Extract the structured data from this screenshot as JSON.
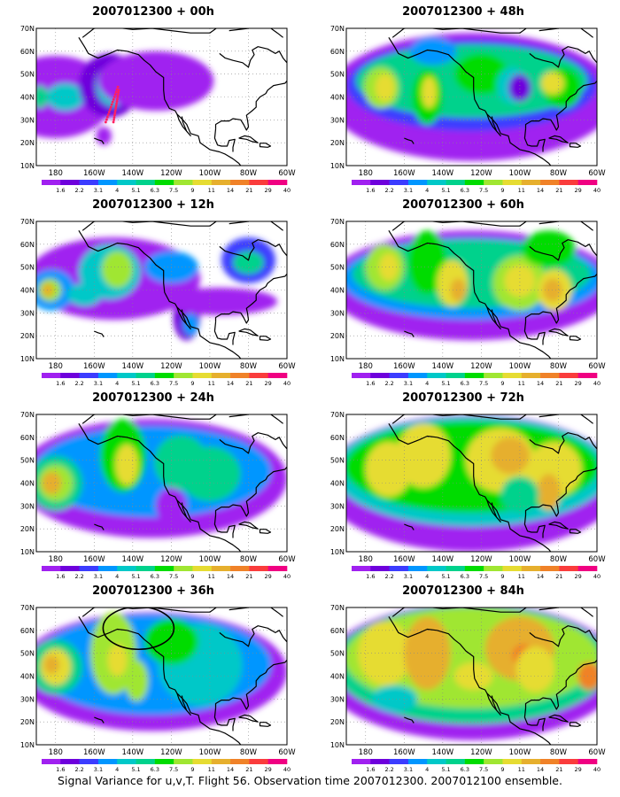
{
  "colorbar": {
    "labels": [
      "1.6",
      "2.2",
      "3.1",
      "4",
      "5.1",
      "6.3",
      "7.5",
      "9",
      "11",
      "14",
      "21",
      "29",
      "40"
    ],
    "colors": [
      "#a020f0",
      "#6e00dc",
      "#3c3cff",
      "#0096ff",
      "#00c8c8",
      "#00d28c",
      "#00dc00",
      "#a0e632",
      "#e6dc32",
      "#e6af2d",
      "#f08228",
      "#fa3c3c",
      "#f00082"
    ]
  },
  "axes": {
    "x_ticks": [
      "180",
      "160W",
      "140W",
      "120W",
      "100W",
      "80W",
      "60W"
    ],
    "y_ticks": [
      "10N",
      "20N",
      "30N",
      "40N",
      "50N",
      "60N",
      "70N"
    ]
  },
  "panels": [
    {
      "title": "2007012300 + 00h",
      "annotation": "red-dotted-flight-track"
    },
    {
      "title": "2007012300 + 48h"
    },
    {
      "title": "2007012300 + 12h"
    },
    {
      "title": "2007012300 + 60h"
    },
    {
      "title": "2007012300 + 24h"
    },
    {
      "title": "2007012300 + 72h"
    },
    {
      "title": "2007012300 + 36h",
      "annotation": "black-ellipse-alaska"
    },
    {
      "title": "2007012300 + 84h"
    }
  ],
  "footer": "Signal Variance for u,v,T. Flight 56. Observation time 2007012300. 2007012100 ensemble."
}
